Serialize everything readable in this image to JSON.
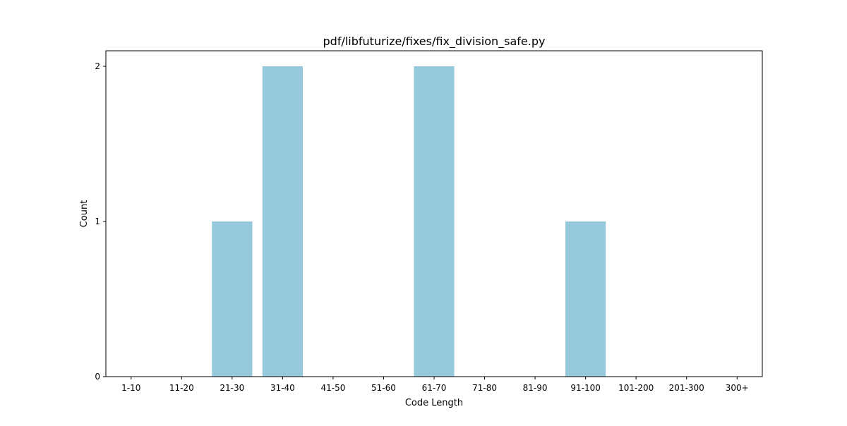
{
  "chart_data": {
    "type": "bar",
    "title": "pdf/libfuturize/fixes/fix_division_safe.py",
    "xlabel": "Code Length",
    "ylabel": "Count",
    "categories": [
      "1-10",
      "11-20",
      "21-30",
      "31-40",
      "41-50",
      "51-60",
      "61-70",
      "71-80",
      "81-90",
      "91-100",
      "101-200",
      "201-300",
      "300+"
    ],
    "values": [
      0,
      0,
      1,
      2,
      0,
      0,
      2,
      0,
      0,
      1,
      0,
      0,
      0
    ],
    "ylim": [
      0,
      2.1
    ],
    "yticks": [
      0,
      1,
      2
    ],
    "grid": false,
    "bar_color": "#96c9dc"
  }
}
